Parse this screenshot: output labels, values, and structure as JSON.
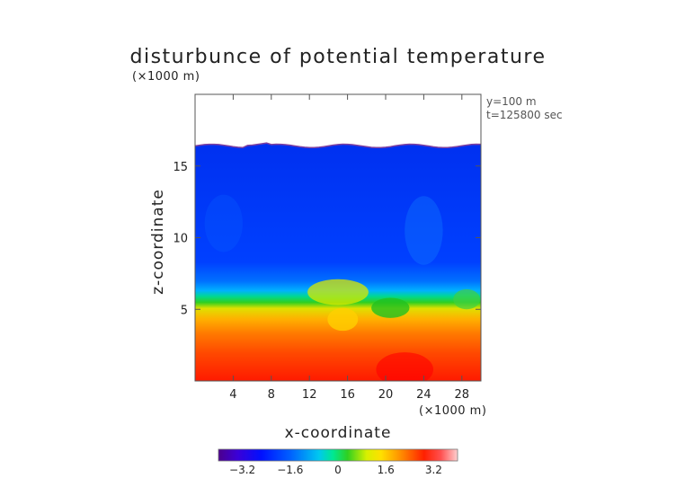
{
  "chart_data": {
    "type": "heatmap",
    "title": "disturbunce of potential temperature",
    "unit_label": "(×1000 m)",
    "annotations": [
      "y=100 m",
      "t=125800 sec"
    ],
    "xlabel": "x-coordinate",
    "xlabel_unit": "(×1000 m)",
    "ylabel": "z-coordinate",
    "xlim": [
      0,
      30
    ],
    "ylim": [
      0,
      20
    ],
    "x_ticks": [
      "4",
      "8",
      "12",
      "16",
      "20",
      "24",
      "28"
    ],
    "x_tick_values": [
      4,
      8,
      12,
      16,
      20,
      24,
      28
    ],
    "y_ticks": [
      "5",
      "10",
      "15"
    ],
    "y_tick_values": [
      5,
      10,
      15
    ],
    "domain_top_km": 16.4,
    "colorbar": {
      "range": [
        -4,
        4
      ],
      "tick_labels": [
        "−3.2",
        "−1.6",
        "0",
        "1.6",
        "3.2"
      ],
      "tick_values": [
        -3.2,
        -1.6,
        0,
        1.6,
        3.2
      ],
      "colors": [
        "#5a00a0",
        "#3a00d8",
        "#0010ff",
        "#0050ff",
        "#0090ff",
        "#00d0f0",
        "#00e890",
        "#20d030",
        "#a0e000",
        "#ffff00",
        "#ffc000",
        "#ff8000",
        "#ff4000",
        "#ff0000",
        "#ff7a7a",
        "#ffc8c8"
      ]
    },
    "field_profile": [
      {
        "z": 0,
        "value": 3.5
      },
      {
        "z": 2,
        "value": 3.0
      },
      {
        "z": 4,
        "value": 2.4
      },
      {
        "z": 5,
        "value": 1.6
      },
      {
        "z": 6,
        "value": 0.0
      },
      {
        "z": 7,
        "value": -1.6
      },
      {
        "z": 9,
        "value": -2.4
      },
      {
        "z": 16.4,
        "value": -2.5
      }
    ]
  }
}
